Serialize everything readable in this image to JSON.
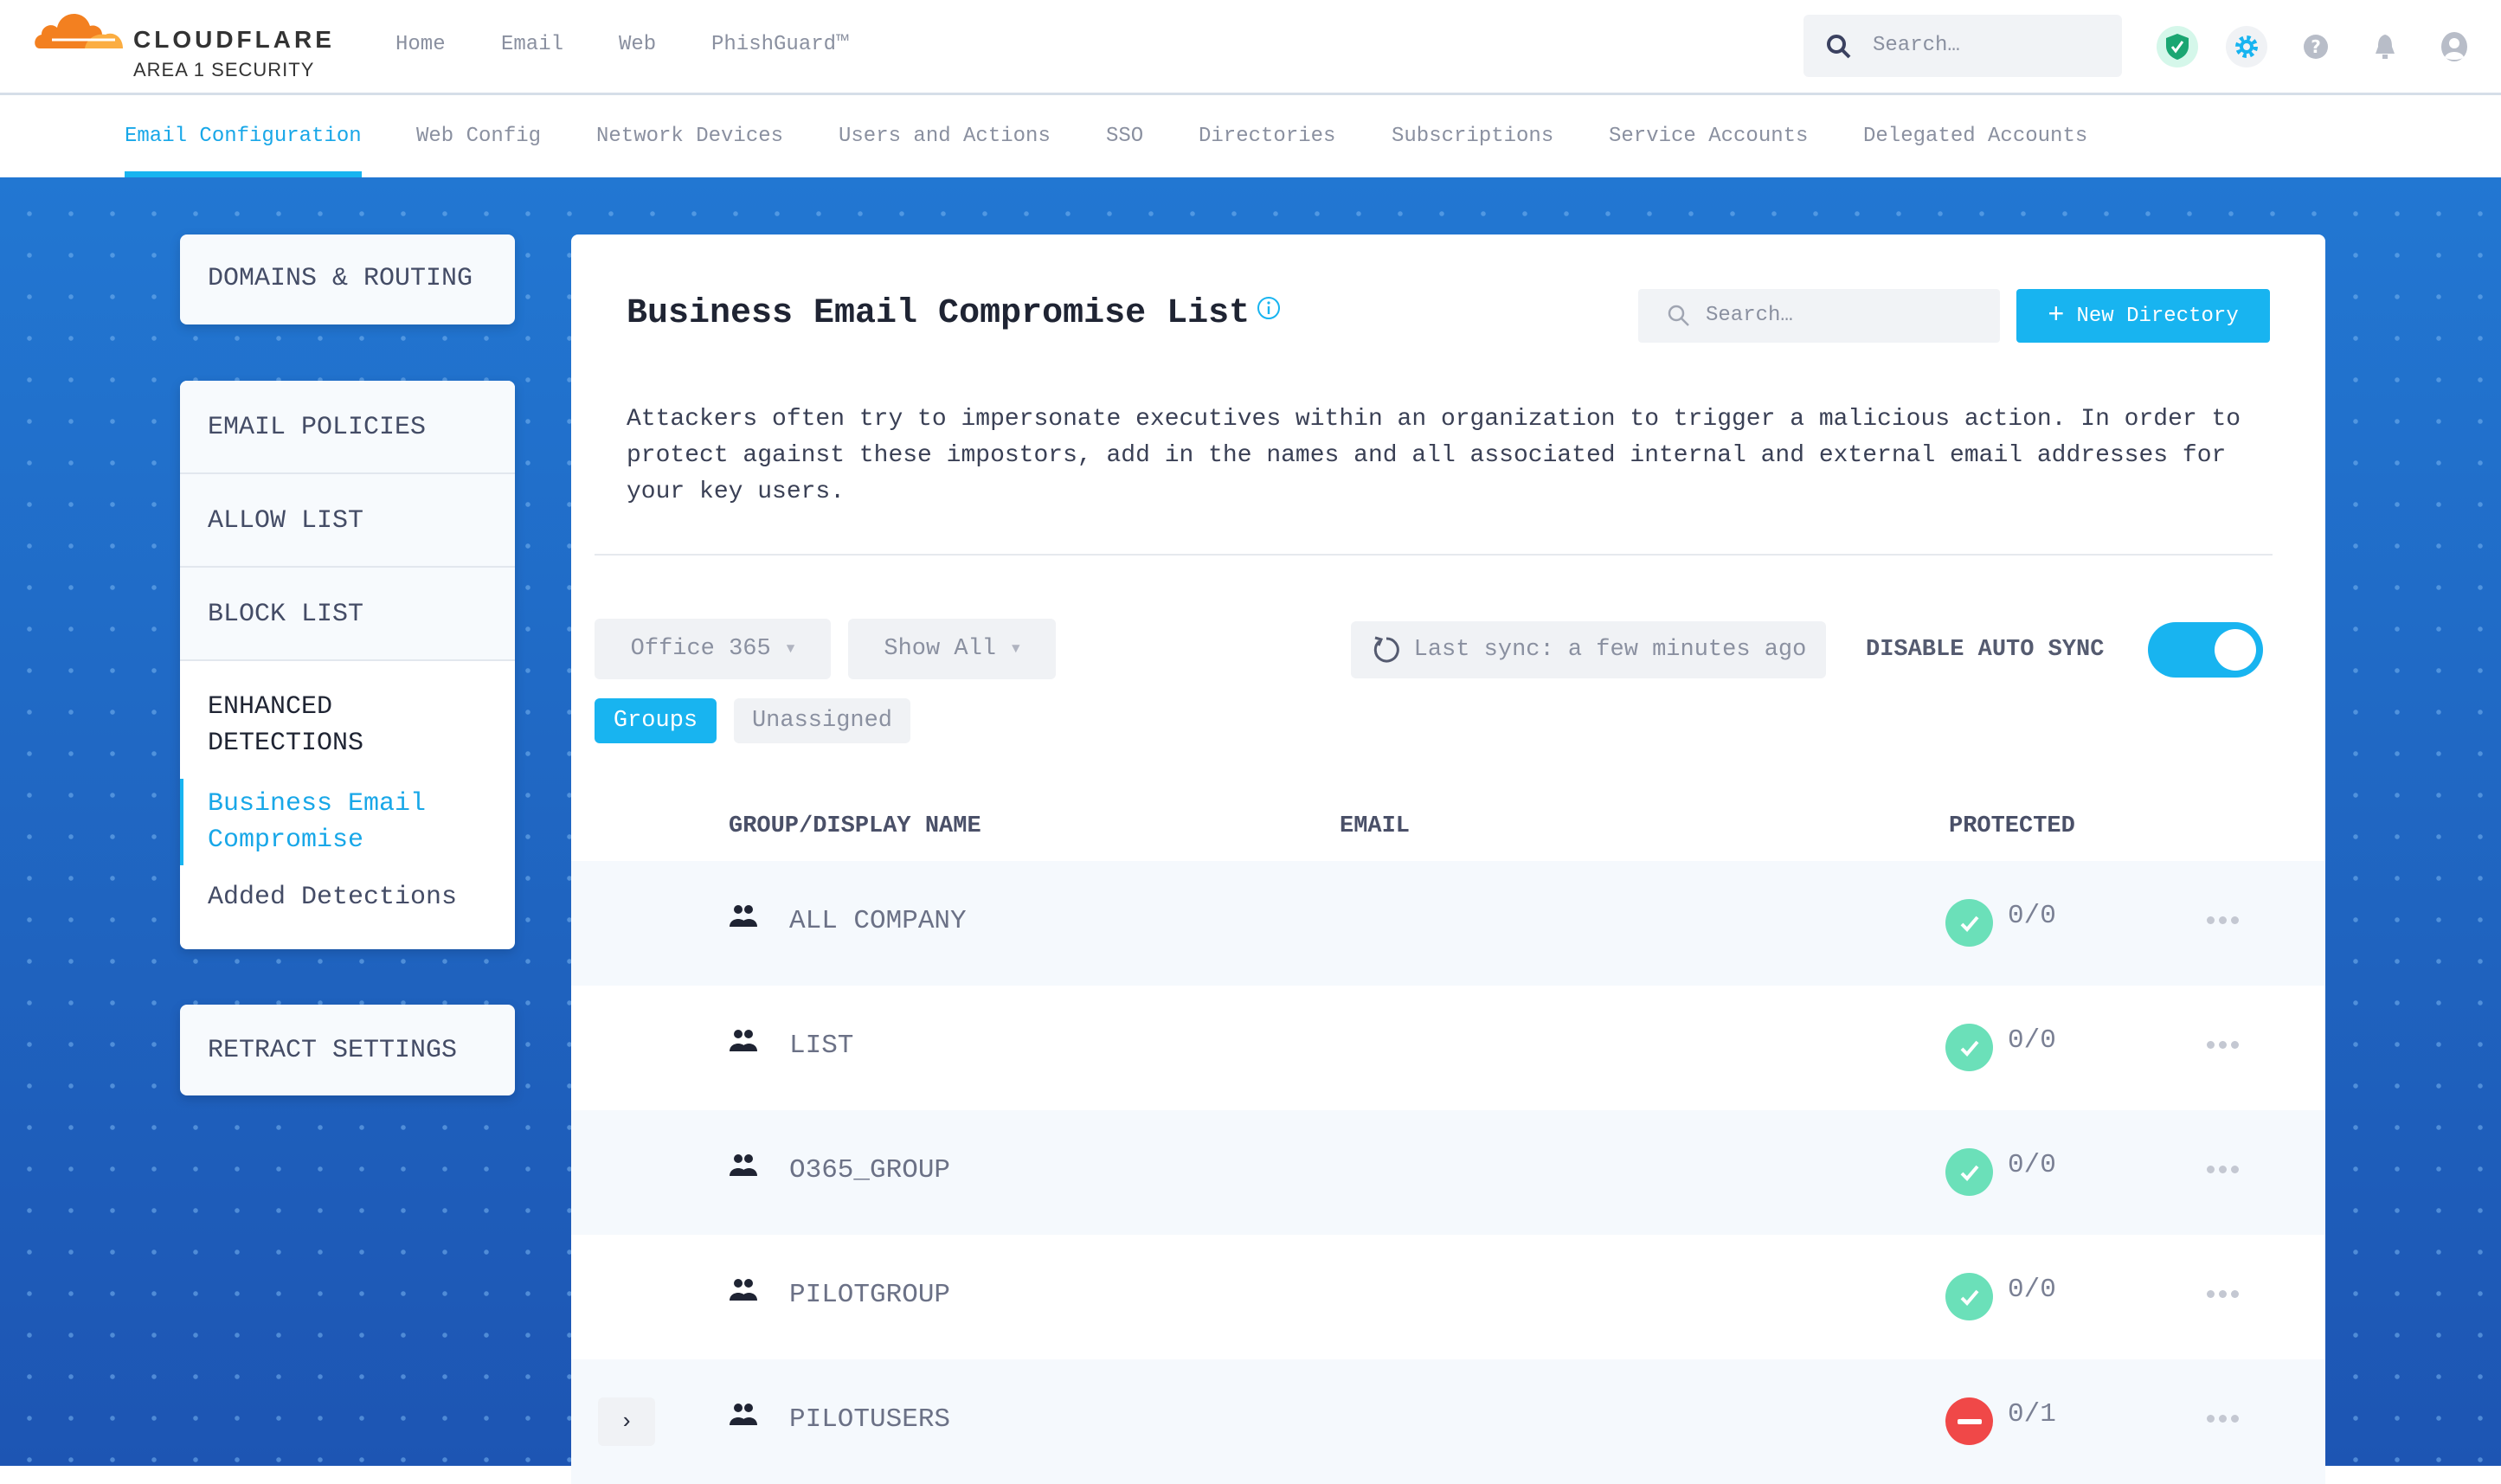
{
  "brand": {
    "name": "CLOUDFLARE",
    "sub": "AREA 1 SECURITY",
    "colors": {
      "orange": "#f38020",
      "accent": "#18b4f0"
    }
  },
  "top_nav": [
    {
      "label": "Home"
    },
    {
      "label": "Email"
    },
    {
      "label": "Web"
    },
    {
      "label": "PhishGuard™"
    }
  ],
  "header": {
    "search_placeholder": "Search…",
    "icons": [
      "shield-check-icon",
      "gear-icon",
      "help-icon",
      "bell-icon",
      "user-icon"
    ]
  },
  "sub_nav": [
    {
      "label": "Email Configuration",
      "active": true
    },
    {
      "label": "Web Config"
    },
    {
      "label": "Network Devices"
    },
    {
      "label": "Users and Actions"
    },
    {
      "label": "SSO"
    },
    {
      "label": "Directories"
    },
    {
      "label": "Subscriptions"
    },
    {
      "label": "Service Accounts"
    },
    {
      "label": "Delegated Accounts"
    }
  ],
  "sidebar": {
    "domains": "DOMAINS & ROUTING",
    "email_policies": "EMAIL POLICIES",
    "allow_list": "ALLOW LIST",
    "block_list": "BLOCK LIST",
    "enhanced_1": "ENHANCED",
    "enhanced_2": "DETECTIONS",
    "bec_1": "Business Email",
    "bec_2": "Compromise",
    "added": "Added Detections",
    "retract": "RETRACT SETTINGS"
  },
  "main": {
    "title": "Business Email Compromise List",
    "search_placeholder": "Search…",
    "new_button": "New Directory",
    "description": [
      "Attackers often try to impersonate executives within an organization to trigger a malicious action. In order to",
      "protect against these impostors, add in the names and all associated internal and external email addresses for",
      "your key users."
    ],
    "source_select": "Office 365",
    "filter_select": "Show All",
    "last_sync": "Last sync: a few minutes ago",
    "auto_sync_label": "DISABLE AUTO SYNC",
    "auto_sync_on": true,
    "tabs": [
      {
        "label": "Groups",
        "active": true
      },
      {
        "label": "Unassigned"
      }
    ],
    "columns": [
      "GROUP/DISPLAY NAME",
      "EMAIL",
      "PROTECTED"
    ],
    "rows": [
      {
        "name": "ALL COMPANY",
        "protected": "0/0",
        "status": "ok"
      },
      {
        "name": "LIST",
        "protected": "0/0",
        "status": "ok"
      },
      {
        "name": "O365_GROUP",
        "protected": "0/0",
        "status": "ok"
      },
      {
        "name": "PILOTGROUP",
        "protected": "0/0",
        "status": "ok"
      },
      {
        "name": "PILOTUSERS",
        "protected": "0/1",
        "status": "blocked",
        "expandable": true
      }
    ]
  }
}
